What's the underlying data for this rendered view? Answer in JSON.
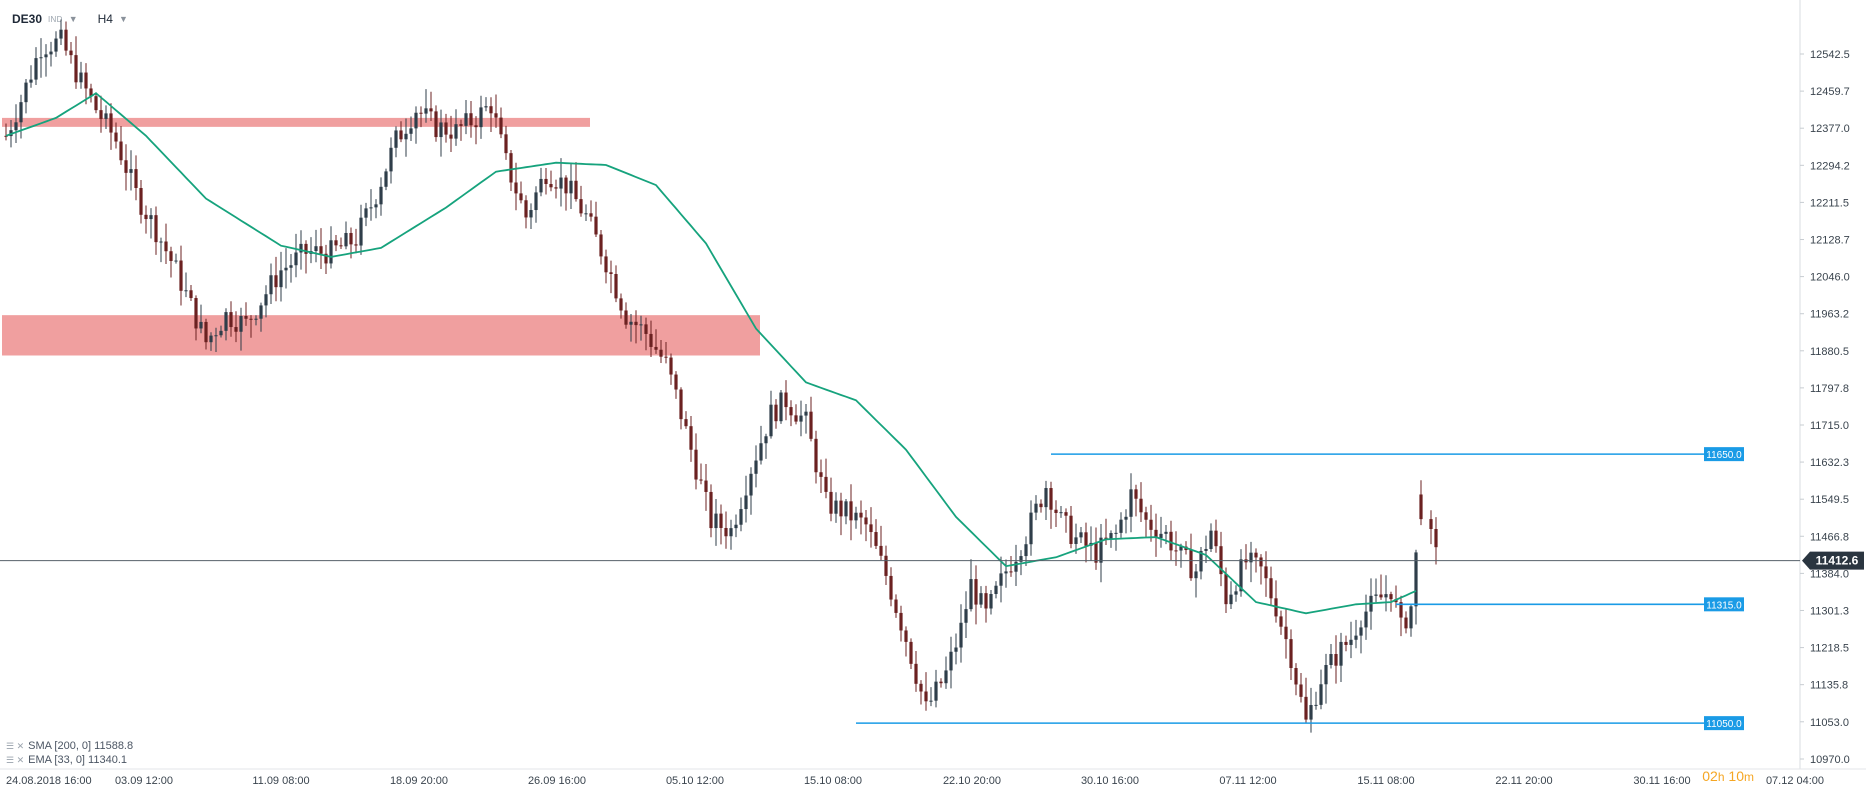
{
  "header": {
    "symbol": "DE30",
    "instrument_type": "IND",
    "timeframe": "H4"
  },
  "legend": {
    "sma": "SMA [200, 0]  11588.8",
    "ema": "EMA [33, 0]  11340.1"
  },
  "countdown": {
    "hours": "02",
    "h": "h",
    "minutes": "10",
    "m": "m"
  },
  "colors": {
    "bull": "#2f3e4a",
    "bear": "#6b2121",
    "ema": "#16a37d",
    "zone": "#ef9a9a",
    "level": "#1a9be6",
    "price_tag": "#2a3540"
  },
  "chart_data": {
    "type": "candlestick",
    "symbol": "DE30",
    "timeframe": "H4",
    "ylim": [
      10960,
      12620
    ],
    "y_ticks": [
      12542.5,
      12459.7,
      12377.0,
      12294.2,
      12211.5,
      12128.7,
      12046.0,
      11963.2,
      11880.5,
      11797.8,
      11715.0,
      11632.3,
      11549.5,
      11466.8,
      11384.0,
      11301.3,
      11218.5,
      11135.8,
      11053.0,
      10970.0
    ],
    "y_tick_labels": [
      "12542.5",
      "12459.7",
      "12377.0",
      "12294.2",
      "12211.5",
      "12128.7",
      "12046.0",
      "11963.2",
      "11880.5",
      "11797.8",
      "11715.0",
      "11632.3",
      "11549.5",
      "11466.8",
      "11384.0",
      "11301.3",
      "11218.5",
      "11135.8",
      "11053.0",
      "10970.0"
    ],
    "x_ticks": [
      "24.08.2018  16:00",
      "03.09  12:00",
      "11.09  08:00",
      "18.09  20:00",
      "26.09  16:00",
      "05.10  12:00",
      "15.10  08:00",
      "22.10  20:00",
      "30.10  16:00",
      "07.11  12:00",
      "15.11  08:00",
      "22.11  20:00",
      "30.11  16:00",
      "07.12  04:00"
    ],
    "current_price": "11412.6",
    "current_value": 11412.6,
    "resistance_zones": [
      [
        12400,
        12380
      ],
      [
        11960,
        11870
      ]
    ],
    "levels": [
      {
        "label": "11650.0",
        "value": 11650.0,
        "from_candle": 209
      },
      {
        "label": "11315.0",
        "value": 11315.0,
        "from_candle": 278
      },
      {
        "label": "11050.0",
        "value": 11050.0,
        "from_candle": 170
      }
    ],
    "ema_anchors": [
      [
        0,
        12360
      ],
      [
        10,
        12400
      ],
      [
        18,
        12455
      ],
      [
        28,
        12360
      ],
      [
        40,
        12220
      ],
      [
        55,
        12115
      ],
      [
        65,
        12090
      ],
      [
        75,
        12110
      ],
      [
        88,
        12200
      ],
      [
        98,
        12280
      ],
      [
        110,
        12300
      ],
      [
        120,
        12295
      ],
      [
        130,
        12250
      ],
      [
        140,
        12120
      ],
      [
        150,
        11930
      ],
      [
        160,
        11810
      ],
      [
        170,
        11770
      ],
      [
        180,
        11660
      ],
      [
        190,
        11510
      ],
      [
        200,
        11400
      ],
      [
        210,
        11420
      ],
      [
        220,
        11460
      ],
      [
        230,
        11465
      ],
      [
        240,
        11425
      ],
      [
        250,
        11320
      ],
      [
        260,
        11295
      ],
      [
        270,
        11315
      ],
      [
        277,
        11320
      ],
      [
        282,
        11345
      ]
    ],
    "candle_anchors": [
      [
        0,
        12360
      ],
      [
        3,
        12440
      ],
      [
        7,
        12560
      ],
      [
        11,
        12570
      ],
      [
        15,
        12480
      ],
      [
        18,
        12420
      ],
      [
        22,
        12350
      ],
      [
        26,
        12230
      ],
      [
        30,
        12150
      ],
      [
        34,
        12060
      ],
      [
        37,
        11980
      ],
      [
        40,
        11900
      ],
      [
        44,
        11960
      ],
      [
        48,
        11940
      ],
      [
        52,
        12010
      ],
      [
        55,
        12060
      ],
      [
        60,
        12100
      ],
      [
        65,
        12100
      ],
      [
        70,
        12130
      ],
      [
        74,
        12230
      ],
      [
        78,
        12350
      ],
      [
        82,
        12420
      ],
      [
        86,
        12380
      ],
      [
        90,
        12370
      ],
      [
        94,
        12400
      ],
      [
        97,
        12430
      ],
      [
        100,
        12300
      ],
      [
        104,
        12180
      ],
      [
        108,
        12280
      ],
      [
        112,
        12250
      ],
      [
        116,
        12180
      ],
      [
        120,
        12080
      ],
      [
        124,
        11960
      ],
      [
        128,
        11920
      ],
      [
        132,
        11850
      ],
      [
        134,
        11780
      ],
      [
        137,
        11660
      ],
      [
        141,
        11500
      ],
      [
        145,
        11480
      ],
      [
        149,
        11620
      ],
      [
        153,
        11740
      ],
      [
        156,
        11770
      ],
      [
        160,
        11720
      ],
      [
        164,
        11540
      ],
      [
        168,
        11520
      ],
      [
        172,
        11490
      ],
      [
        176,
        11380
      ],
      [
        180,
        11240
      ],
      [
        184,
        11080
      ],
      [
        188,
        11160
      ],
      [
        191,
        11260
      ],
      [
        193,
        11360
      ],
      [
        196,
        11290
      ],
      [
        200,
        11390
      ],
      [
        204,
        11470
      ],
      [
        208,
        11580
      ],
      [
        211,
        11500
      ],
      [
        214,
        11460
      ],
      [
        218,
        11430
      ],
      [
        222,
        11470
      ],
      [
        225,
        11560
      ],
      [
        228,
        11500
      ],
      [
        232,
        11470
      ],
      [
        235,
        11420
      ],
      [
        238,
        11390
      ],
      [
        241,
        11480
      ],
      [
        244,
        11330
      ],
      [
        248,
        11410
      ],
      [
        251,
        11390
      ],
      [
        254,
        11310
      ],
      [
        257,
        11200
      ],
      [
        260,
        11050
      ],
      [
        263,
        11150
      ],
      [
        266,
        11200
      ],
      [
        269,
        11240
      ],
      [
        271,
        11290
      ],
      [
        274,
        11320
      ],
      [
        277,
        11350
      ],
      [
        279,
        11260
      ],
      [
        281,
        11310
      ],
      [
        283,
        11530
      ],
      [
        286,
        11420
      ]
    ]
  }
}
